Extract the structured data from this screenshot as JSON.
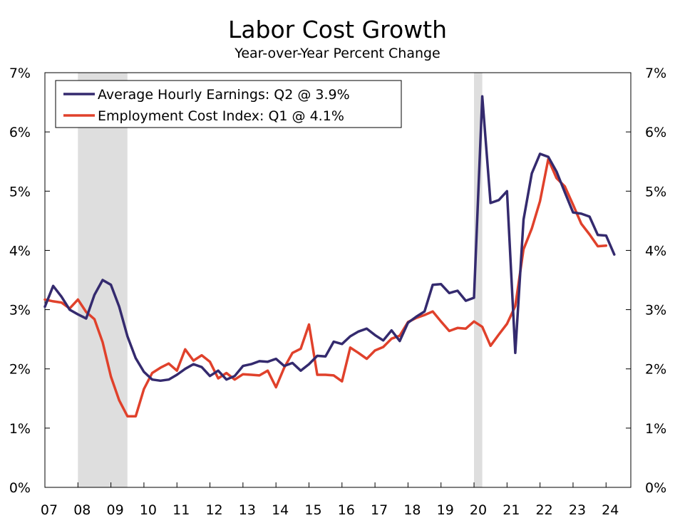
{
  "chart_data": {
    "type": "line",
    "title": "Labor Cost Growth",
    "subtitle": "Year-over-Year Percent Change",
    "xlabel": "",
    "ylabel": "",
    "ylim": [
      0,
      7
    ],
    "xlim": [
      2007,
      2024.75
    ],
    "y_ticks": [
      {
        "value": 0,
        "label": "0%"
      },
      {
        "value": 1,
        "label": "1%"
      },
      {
        "value": 2,
        "label": "2%"
      },
      {
        "value": 3,
        "label": "3%"
      },
      {
        "value": 4,
        "label": "4%"
      },
      {
        "value": 5,
        "label": "5%"
      },
      {
        "value": 6,
        "label": "6%"
      },
      {
        "value": 7,
        "label": "7%"
      }
    ],
    "x_ticks": [
      {
        "value": 2007,
        "label": "07"
      },
      {
        "value": 2008,
        "label": "08"
      },
      {
        "value": 2009,
        "label": "09"
      },
      {
        "value": 2010,
        "label": "10"
      },
      {
        "value": 2011,
        "label": "11"
      },
      {
        "value": 2012,
        "label": "12"
      },
      {
        "value": 2013,
        "label": "13"
      },
      {
        "value": 2014,
        "label": "14"
      },
      {
        "value": 2015,
        "label": "15"
      },
      {
        "value": 2016,
        "label": "16"
      },
      {
        "value": 2017,
        "label": "17"
      },
      {
        "value": 2018,
        "label": "18"
      },
      {
        "value": 2019,
        "label": "19"
      },
      {
        "value": 2020,
        "label": "20"
      },
      {
        "value": 2021,
        "label": "21"
      },
      {
        "value": 2022,
        "label": "22"
      },
      {
        "value": 2023,
        "label": "23"
      },
      {
        "value": 2024,
        "label": "24"
      }
    ],
    "recessions": [
      {
        "start": 2008.0,
        "end": 2009.5
      },
      {
        "start": 2020.0,
        "end": 2020.25
      }
    ],
    "grid": false,
    "legend_position": "top-left",
    "series": [
      {
        "name": "Average Hourly Earnings",
        "legend_label": "Average Hourly Earnings: Q2 @ 3.9%",
        "color": "#342a6e",
        "x": [
          2007.0,
          2007.25,
          2007.5,
          2007.75,
          2008.0,
          2008.25,
          2008.5,
          2008.75,
          2009.0,
          2009.25,
          2009.5,
          2009.75,
          2010.0,
          2010.25,
          2010.5,
          2010.75,
          2011.0,
          2011.25,
          2011.5,
          2011.75,
          2012.0,
          2012.25,
          2012.5,
          2012.75,
          2013.0,
          2013.25,
          2013.5,
          2013.75,
          2014.0,
          2014.25,
          2014.5,
          2014.75,
          2015.0,
          2015.25,
          2015.5,
          2015.75,
          2016.0,
          2016.25,
          2016.5,
          2016.75,
          2017.0,
          2017.25,
          2017.5,
          2017.75,
          2018.0,
          2018.25,
          2018.5,
          2018.75,
          2019.0,
          2019.25,
          2019.5,
          2019.75,
          2020.0,
          2020.25,
          2020.5,
          2020.75,
          2021.0,
          2021.25,
          2021.5,
          2021.75,
          2022.0,
          2022.25,
          2022.5,
          2022.75,
          2023.0,
          2023.25,
          2023.5,
          2023.75,
          2024.0,
          2024.25
        ],
        "values": [
          3.05,
          3.4,
          3.22,
          3.0,
          2.92,
          2.85,
          3.25,
          3.5,
          3.42,
          3.05,
          2.55,
          2.18,
          1.95,
          1.82,
          1.8,
          1.82,
          1.9,
          2.0,
          2.08,
          2.03,
          1.88,
          1.97,
          1.82,
          1.88,
          2.05,
          2.08,
          2.13,
          2.12,
          2.17,
          2.05,
          2.1,
          1.97,
          2.08,
          2.22,
          2.21,
          2.46,
          2.42,
          2.55,
          2.63,
          2.68,
          2.57,
          2.48,
          2.65,
          2.47,
          2.78,
          2.88,
          2.97,
          3.42,
          3.43,
          3.28,
          3.32,
          3.15,
          3.2,
          6.6,
          4.8,
          4.85,
          5.0,
          2.27,
          4.52,
          5.3,
          5.63,
          5.58,
          5.33,
          4.98,
          4.64,
          4.62,
          4.57,
          4.26,
          4.25,
          3.93
        ]
      },
      {
        "name": "Employment Cost Index",
        "legend_label": "Employment Cost Index: Q1 @ 4.1%",
        "color": "#e0412b",
        "x": [
          2007.0,
          2007.25,
          2007.5,
          2007.75,
          2008.0,
          2008.25,
          2008.5,
          2008.75,
          2009.0,
          2009.25,
          2009.5,
          2009.75,
          2010.0,
          2010.25,
          2010.5,
          2010.75,
          2011.0,
          2011.25,
          2011.5,
          2011.75,
          2012.0,
          2012.25,
          2012.5,
          2012.75,
          2013.0,
          2013.25,
          2013.5,
          2013.75,
          2014.0,
          2014.25,
          2014.5,
          2014.75,
          2015.0,
          2015.25,
          2015.5,
          2015.75,
          2016.0,
          2016.25,
          2016.5,
          2016.75,
          2017.0,
          2017.25,
          2017.5,
          2017.75,
          2018.0,
          2018.25,
          2018.5,
          2018.75,
          2019.0,
          2019.25,
          2019.5,
          2019.75,
          2020.0,
          2020.25,
          2020.5,
          2020.75,
          2021.0,
          2021.25,
          2021.5,
          2021.75,
          2022.0,
          2022.25,
          2022.5,
          2022.75,
          2023.0,
          2023.25,
          2023.5,
          2023.75,
          2024.0
        ],
        "values": [
          3.17,
          3.14,
          3.12,
          3.02,
          3.17,
          2.96,
          2.84,
          2.45,
          1.87,
          1.47,
          1.2,
          1.2,
          1.66,
          1.93,
          2.02,
          2.09,
          1.97,
          2.33,
          2.14,
          2.23,
          2.12,
          1.84,
          1.93,
          1.82,
          1.91,
          1.9,
          1.89,
          1.97,
          1.69,
          2.02,
          2.27,
          2.34,
          2.75,
          1.9,
          1.9,
          1.89,
          1.79,
          2.36,
          2.27,
          2.17,
          2.31,
          2.37,
          2.51,
          2.56,
          2.79,
          2.86,
          2.91,
          2.97,
          2.8,
          2.64,
          2.69,
          2.68,
          2.8,
          2.71,
          2.39,
          2.58,
          2.76,
          3.06,
          4.02,
          4.37,
          4.83,
          5.54,
          5.22,
          5.08,
          4.77,
          4.45,
          4.27,
          4.07,
          4.08
        ]
      }
    ]
  }
}
